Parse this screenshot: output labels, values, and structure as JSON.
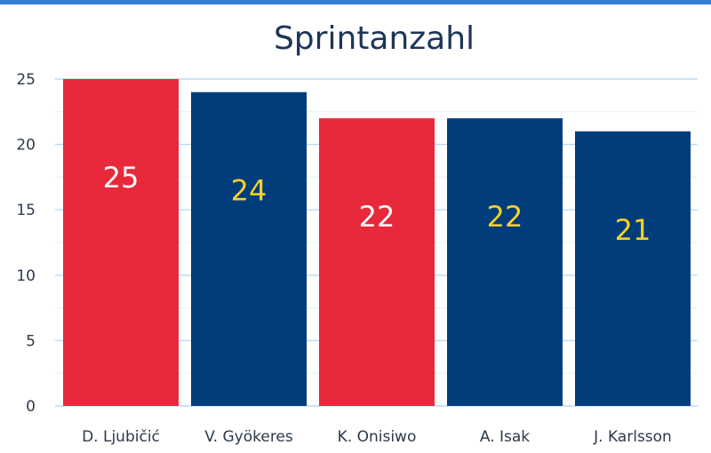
{
  "chart_data": {
    "type": "bar",
    "title": "Sprintanzahl",
    "xlabel": "",
    "ylabel": "",
    "categories": [
      "D. Ljubičić",
      "V. Gyökeres",
      "K. Onisiwo",
      "A. Isak",
      "J. Karlsson"
    ],
    "values": [
      25,
      24,
      22,
      22,
      21
    ],
    "data_labels": [
      "25",
      "24",
      "22",
      "22",
      "21"
    ],
    "ylim": [
      0,
      25
    ],
    "yticks": [
      0,
      5,
      10,
      15,
      20,
      25
    ],
    "ytick_labels": [
      "0",
      "5",
      "10",
      "15",
      "20",
      "25"
    ],
    "grid": true,
    "legend": "none",
    "bar_colors": [
      "#e8283b",
      "#003d7a",
      "#e8283b",
      "#003d7a",
      "#003d7a"
    ],
    "label_colors": [
      "#ffffff",
      "#f4d22a",
      "#ffffff",
      "#f4d22a",
      "#f4d22a"
    ]
  },
  "colors": {
    "accent_stripe": "#2f7fd8",
    "grid_major": "#bcd8f2",
    "grid_minor": "#e4f0fb"
  }
}
